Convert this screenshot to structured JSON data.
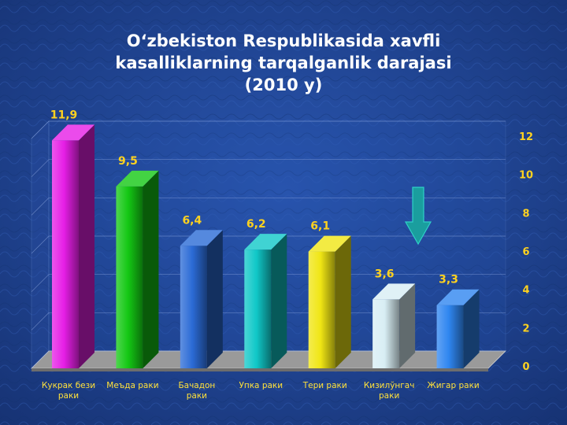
{
  "title": {
    "line1": "O‘zbekiston Respublikasida xavfli",
    "line2": "kasalliklarning tarqalganlik darajasi",
    "line3": "(2010 y)"
  },
  "colors": {
    "background": "#1c3f8e",
    "label_yellow": "#ffd21f",
    "arrow": "#1a9e9e"
  },
  "chart_data": {
    "type": "bar",
    "title": "O‘zbekiston Respublikasida xavfli kasalliklarning tarqalganlik darajasi (2010 y)",
    "categories": [
      [
        "Кукрак бези",
        "раки"
      ],
      [
        "Меъда раки"
      ],
      [
        "Бачадон",
        "раки"
      ],
      [
        "Упка раки"
      ],
      [
        "Тери раки"
      ],
      [
        "Кизилўнгач",
        "раки"
      ],
      [
        "Жигар раки"
      ]
    ],
    "values": [
      11.9,
      9.5,
      6.4,
      6.2,
      6.1,
      3.6,
      3.3
    ],
    "value_labels": [
      "11,9",
      "9,5",
      "6,4",
      "6,2",
      "6,1",
      "3,6",
      "3,3"
    ],
    "bar_colors": [
      "#e61ee6",
      "#14c814",
      "#2b6bd6",
      "#10c8c8",
      "#f0e614",
      "#d8eef4",
      "#2f86f0"
    ],
    "ylim": [
      0,
      12
    ],
    "yticks": [
      0,
      2,
      4,
      6,
      8,
      10,
      12
    ],
    "xlabel": "",
    "ylabel": "",
    "grid": true
  }
}
